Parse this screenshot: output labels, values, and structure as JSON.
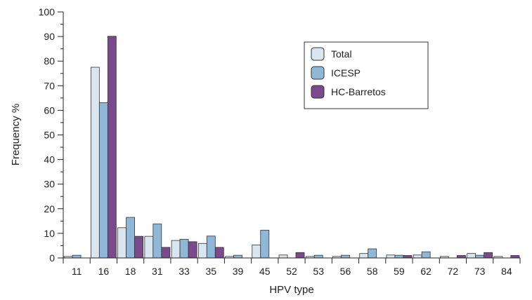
{
  "chart_data": {
    "type": "bar",
    "title": "",
    "xlabel": "HPV type",
    "ylabel": "Frequency %",
    "ylim": [
      0,
      100
    ],
    "yticks": [
      0,
      10,
      20,
      30,
      40,
      50,
      60,
      70,
      80,
      90,
      100
    ],
    "grid": false,
    "legend_position": "top-right",
    "categories": [
      "11",
      "16",
      "18",
      "31",
      "33",
      "35",
      "39",
      "45",
      "52",
      "53",
      "56",
      "58",
      "59",
      "62",
      "72",
      "73",
      "84"
    ],
    "series": [
      {
        "name": "Total",
        "color": "#d9e6ef",
        "values": [
          0.6,
          77.5,
          12.3,
          8.8,
          7.1,
          5.9,
          0.6,
          5.3,
          1.2,
          0.6,
          0.6,
          1.8,
          1.2,
          1.2,
          0.6,
          1.8,
          0.6
        ]
      },
      {
        "name": "ICESP",
        "color": "#8fb7d8",
        "values": [
          1.1,
          63.1,
          16.5,
          13.8,
          7.6,
          8.9,
          1.1,
          11.3,
          0.0,
          1.1,
          1.1,
          3.7,
          1.1,
          2.5,
          0.0,
          1.1,
          0.0
        ]
      },
      {
        "name": "HC-Barretos",
        "color": "#7a4a8c",
        "values": [
          0.0,
          90.1,
          8.8,
          4.3,
          6.6,
          4.3,
          0.0,
          0.0,
          2.2,
          0.0,
          0.0,
          0.0,
          1.0,
          0.0,
          1.0,
          2.2,
          1.0
        ]
      }
    ]
  }
}
